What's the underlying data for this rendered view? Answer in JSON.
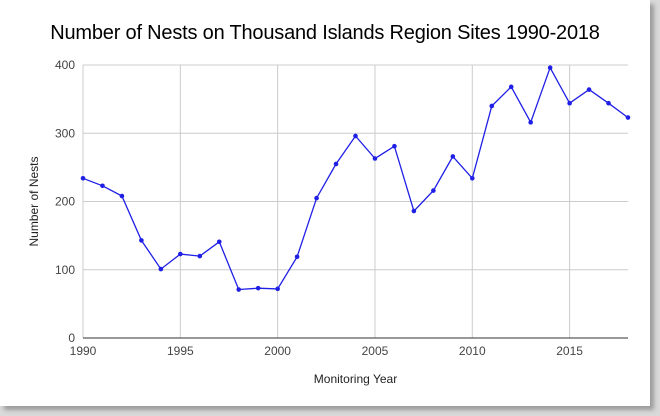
{
  "chart_data": {
    "type": "line",
    "title": "Number of Nests on Thousand Islands Region Sites 1990-2018",
    "xlabel": "Monitoring Year",
    "ylabel": "Number of Nests",
    "xlim": [
      1990,
      2018
    ],
    "ylim": [
      0,
      400
    ],
    "xticks": [
      1990,
      1995,
      2000,
      2005,
      2010,
      2015
    ],
    "yticks": [
      0,
      100,
      200,
      300,
      400
    ],
    "grid": true,
    "series_color": "#1f1fe6",
    "series": [
      {
        "x": [
          1990,
          1991,
          1992,
          1993,
          1994,
          1995,
          1996,
          1997,
          1998,
          1999,
          2000,
          2001,
          2002,
          2003,
          2004,
          2005,
          2006,
          2007,
          2008,
          2009,
          2010,
          2011,
          2012,
          2013,
          2014,
          2015,
          2016,
          2017,
          2018
        ],
        "values": [
          234,
          223,
          208,
          143,
          101,
          123,
          120,
          141,
          71,
          73,
          72,
          119,
          205,
          255,
          296,
          263,
          281,
          186,
          216,
          266,
          234,
          340,
          368,
          316,
          396,
          344,
          364,
          344,
          323
        ]
      }
    ]
  }
}
